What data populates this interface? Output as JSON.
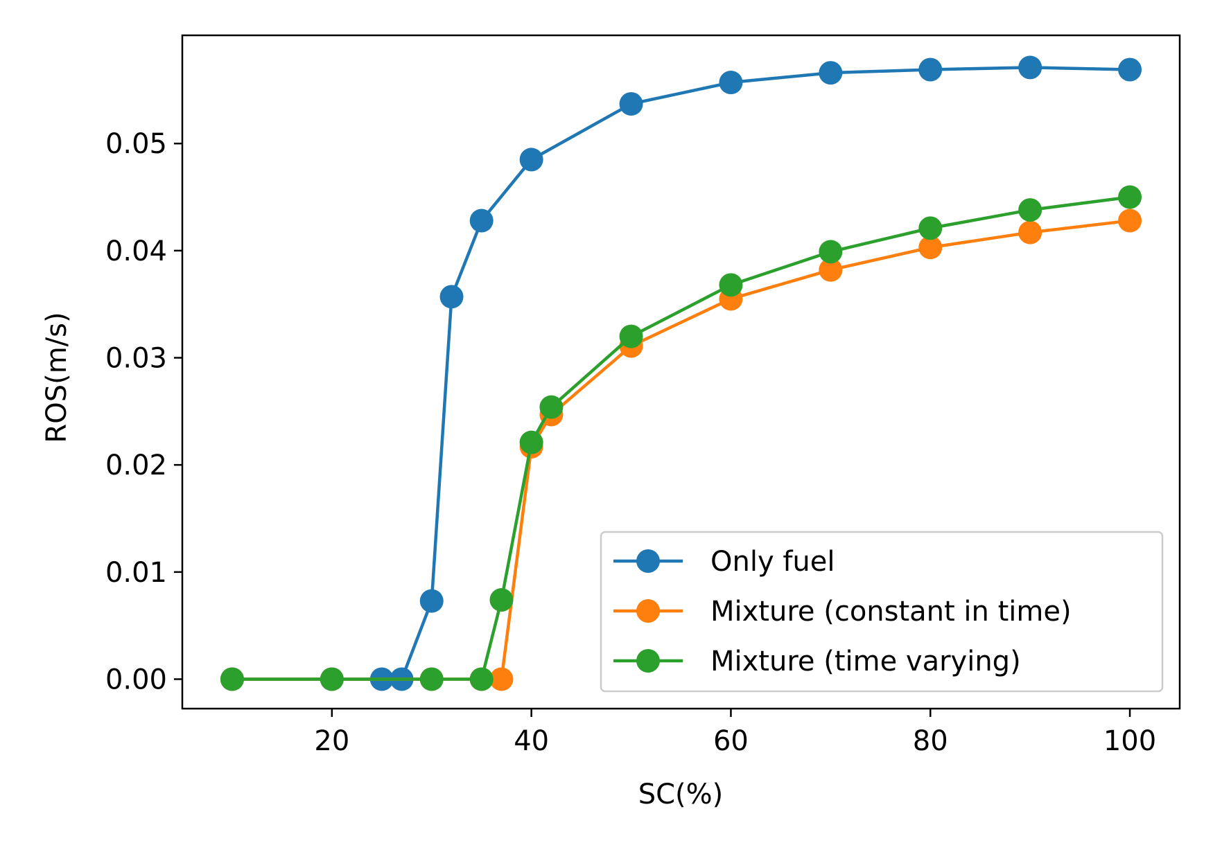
{
  "chart_data": {
    "type": "line",
    "title": "",
    "xlabel": "SC(%)",
    "ylabel": "ROS(m/s)",
    "xlim": [
      5,
      105
    ],
    "ylim": [
      -0.00275,
      0.0601
    ],
    "xticks": [
      20,
      40,
      60,
      80,
      100
    ],
    "xtick_labels": [
      "20",
      "40",
      "60",
      "80",
      "100"
    ],
    "yticks": [
      0.0,
      0.01,
      0.02,
      0.03,
      0.04,
      0.05
    ],
    "ytick_labels": [
      "0.00",
      "0.01",
      "0.02",
      "0.03",
      "0.04",
      "0.05"
    ],
    "grid": false,
    "legend_position": "lower-right",
    "series": [
      {
        "name": "Only fuel",
        "color": "#1f77b4",
        "marker": "circle",
        "x": [
          10,
          20,
          25,
          27,
          30,
          32,
          35,
          40,
          50,
          60,
          70,
          80,
          90,
          100
        ],
        "y": [
          0.0,
          0.0,
          0.0,
          0.0,
          0.0073,
          0.0357,
          0.0428,
          0.0485,
          0.0537,
          0.0557,
          0.0566,
          0.0569,
          0.0571,
          0.0569
        ]
      },
      {
        "name": "Mixture (constant in time)",
        "color": "#ff7f0e",
        "marker": "circle",
        "x": [
          10,
          20,
          30,
          35,
          37,
          40,
          42,
          50,
          60,
          70,
          80,
          90,
          100
        ],
        "y": [
          0.0,
          0.0,
          0.0,
          0.0,
          0.0,
          0.0217,
          0.0247,
          0.0311,
          0.0355,
          0.0382,
          0.0403,
          0.0417,
          0.0428
        ]
      },
      {
        "name": "Mixture (time varying)",
        "color": "#2ca02c",
        "marker": "circle",
        "x": [
          10,
          20,
          30,
          35,
          37,
          40,
          42,
          50,
          60,
          70,
          80,
          90,
          100
        ],
        "y": [
          0.0,
          0.0,
          0.0,
          0.0,
          0.0074,
          0.0221,
          0.0254,
          0.032,
          0.0368,
          0.0399,
          0.0421,
          0.0438,
          0.045
        ]
      }
    ]
  }
}
